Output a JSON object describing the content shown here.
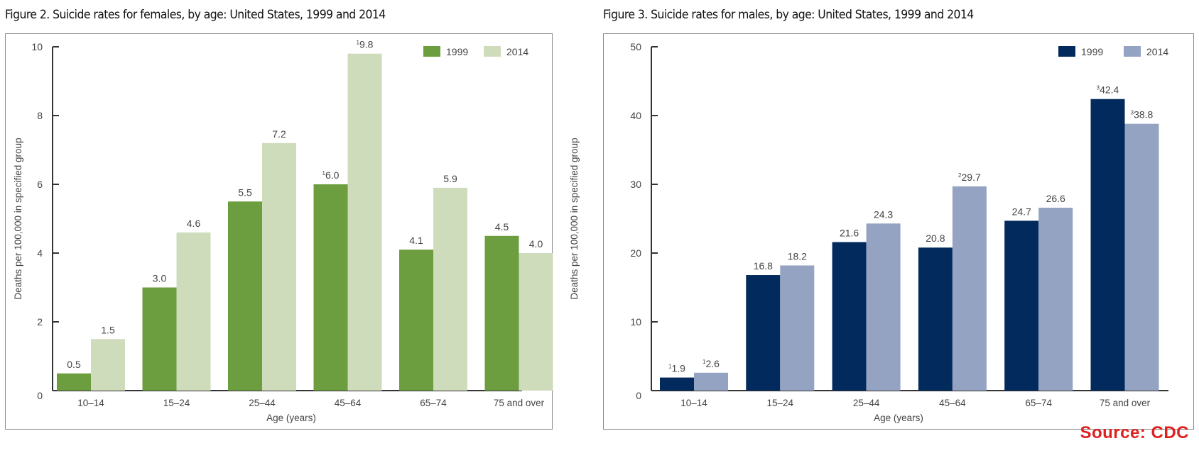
{
  "source_label": "Source: CDC",
  "colors": {
    "female_1999": "#6c9d3e",
    "female_2014": "#cfdcbc",
    "male_1999": "#032a5c",
    "male_2014": "#94a3c2",
    "axis": "#333333",
    "source": "#e02020"
  },
  "chart_data": [
    {
      "type": "bar",
      "title": "Figure 2. Suicide rates for females, by age: United States, 1999 and 2014",
      "xlabel": "Age (years)",
      "ylabel": "Deaths per 100,000 in specified group",
      "ylim": [
        0,
        10
      ],
      "yticks": [
        0,
        2,
        4,
        6,
        8,
        10
      ],
      "grid": false,
      "legend_position": "top-right",
      "categories": [
        "10–14",
        "15–24",
        "25–44",
        "45–64",
        "65–74",
        "75 and over"
      ],
      "series": [
        {
          "name": "1999",
          "color_key": "female_1999",
          "values": [
            0.5,
            3.0,
            5.5,
            6.0,
            4.1,
            4.5
          ],
          "labels": [
            "0.5",
            "3.0",
            "5.5",
            "6.0",
            "4.1",
            "4.5"
          ],
          "footnotes": [
            "",
            "",
            "",
            "1",
            "",
            ""
          ]
        },
        {
          "name": "2014",
          "color_key": "female_2014",
          "values": [
            1.5,
            4.6,
            7.2,
            9.8,
            5.9,
            4.0
          ],
          "labels": [
            "1.5",
            "4.6",
            "7.2",
            "9.8",
            "5.9",
            "4.0"
          ],
          "footnotes": [
            "",
            "",
            "",
            "1",
            "",
            ""
          ]
        }
      ]
    },
    {
      "type": "bar",
      "title": "Figure 3. Suicide rates for males, by age: United States, 1999 and 2014",
      "xlabel": "Age (years)",
      "ylabel": "Deaths per 100,000 in specified group",
      "ylim": [
        0,
        50
      ],
      "yticks": [
        0,
        10,
        20,
        30,
        40,
        50
      ],
      "grid": false,
      "legend_position": "top-right",
      "categories": [
        "10–14",
        "15–24",
        "25–44",
        "45–64",
        "65–74",
        "75 and over"
      ],
      "series": [
        {
          "name": "1999",
          "color_key": "male_1999",
          "values": [
            1.9,
            16.8,
            21.6,
            20.8,
            24.7,
            42.4
          ],
          "labels": [
            "1.9",
            "16.8",
            "21.6",
            "20.8",
            "24.7",
            "42.4"
          ],
          "footnotes": [
            "1",
            "",
            "",
            "",
            "",
            "3"
          ]
        },
        {
          "name": "2014",
          "color_key": "male_2014",
          "values": [
            2.6,
            18.2,
            24.3,
            29.7,
            26.6,
            38.8
          ],
          "labels": [
            "2.6",
            "18.2",
            "24.3",
            "29.7",
            "26.6",
            "38.8"
          ],
          "footnotes": [
            "1",
            "",
            "",
            "2",
            "",
            "3"
          ]
        }
      ]
    }
  ]
}
